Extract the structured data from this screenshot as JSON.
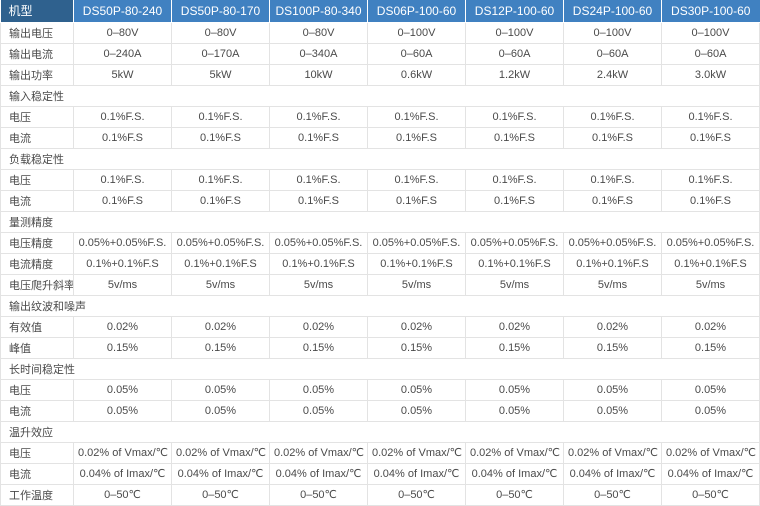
{
  "table": {
    "header": {
      "label": "机型",
      "models": [
        "DS50P-80-240",
        "DS50P-80-170",
        "DS100P-80-340",
        "DS06P-100-60",
        "DS12P-100-60",
        "DS24P-100-60",
        "DS30P-100-60"
      ]
    },
    "rows": [
      {
        "type": "data",
        "label": "输出电压",
        "values": [
          "0–80V",
          "0–80V",
          "0–80V",
          "0–100V",
          "0–100V",
          "0–100V",
          "0–100V"
        ]
      },
      {
        "type": "data",
        "label": "输出电流",
        "values": [
          "0–240A",
          "0–170A",
          "0–340A",
          "0–60A",
          "0–60A",
          "0–60A",
          "0–60A"
        ]
      },
      {
        "type": "data",
        "label": "输出功率",
        "values": [
          "5kW",
          "5kW",
          "10kW",
          "0.6kW",
          "1.2kW",
          "2.4kW",
          "3.0kW"
        ]
      },
      {
        "type": "section",
        "label": "输入稳定性"
      },
      {
        "type": "data",
        "label": "电压",
        "values": [
          "0.1%F.S.",
          "0.1%F.S.",
          "0.1%F.S.",
          "0.1%F.S.",
          "0.1%F.S.",
          "0.1%F.S.",
          "0.1%F.S."
        ]
      },
      {
        "type": "data",
        "label": "电流",
        "values": [
          "0.1%F.S",
          "0.1%F.S",
          "0.1%F.S",
          "0.1%F.S",
          "0.1%F.S",
          "0.1%F.S",
          "0.1%F.S"
        ]
      },
      {
        "type": "section",
        "label": "负载稳定性"
      },
      {
        "type": "data",
        "label": "电压",
        "values": [
          "0.1%F.S.",
          "0.1%F.S.",
          "0.1%F.S.",
          "0.1%F.S.",
          "0.1%F.S.",
          "0.1%F.S.",
          "0.1%F.S."
        ]
      },
      {
        "type": "data",
        "label": "电流",
        "values": [
          "0.1%F.S",
          "0.1%F.S",
          "0.1%F.S",
          "0.1%F.S",
          "0.1%F.S",
          "0.1%F.S",
          "0.1%F.S"
        ]
      },
      {
        "type": "section",
        "label": "量测精度"
      },
      {
        "type": "data",
        "label": "电压精度",
        "values": [
          "0.05%+0.05%F.S.",
          "0.05%+0.05%F.S.",
          "0.05%+0.05%F.S.",
          "0.05%+0.05%F.S.",
          "0.05%+0.05%F.S.",
          "0.05%+0.05%F.S.",
          "0.05%+0.05%F.S."
        ]
      },
      {
        "type": "data",
        "label": "电流精度",
        "values": [
          "0.1%+0.1%F.S",
          "0.1%+0.1%F.S",
          "0.1%+0.1%F.S",
          "0.1%+0.1%F.S",
          "0.1%+0.1%F.S",
          "0.1%+0.1%F.S",
          "0.1%+0.1%F.S"
        ]
      },
      {
        "type": "data",
        "label": "电压爬升斜率",
        "values": [
          "5v/ms",
          "5v/ms",
          "5v/ms",
          "5v/ms",
          "5v/ms",
          "5v/ms",
          "5v/ms"
        ]
      },
      {
        "type": "section",
        "label": "输出纹波和噪声"
      },
      {
        "type": "data",
        "label": "有效值",
        "values": [
          "0.02%",
          "0.02%",
          "0.02%",
          "0.02%",
          "0.02%",
          "0.02%",
          "0.02%"
        ]
      },
      {
        "type": "data",
        "label": "峰值",
        "values": [
          "0.15%",
          "0.15%",
          "0.15%",
          "0.15%",
          "0.15%",
          "0.15%",
          "0.15%"
        ]
      },
      {
        "type": "section",
        "label": "长时间稳定性"
      },
      {
        "type": "data",
        "label": "电压",
        "values": [
          "0.05%",
          "0.05%",
          "0.05%",
          "0.05%",
          "0.05%",
          "0.05%",
          "0.05%"
        ]
      },
      {
        "type": "data",
        "label": "电流",
        "values": [
          "0.05%",
          "0.05%",
          "0.05%",
          "0.05%",
          "0.05%",
          "0.05%",
          "0.05%"
        ]
      },
      {
        "type": "section",
        "label": "温升效应"
      },
      {
        "type": "data",
        "label": "电压",
        "values": [
          "0.02% of Vmax/℃",
          "0.02% of Vmax/℃",
          "0.02% of Vmax/℃",
          "0.02% of Vmax/℃",
          "0.02% of Vmax/℃",
          "0.02% of Vmax/℃",
          "0.02% of Vmax/℃"
        ]
      },
      {
        "type": "data",
        "label": "电流",
        "values": [
          "0.04% of Imax/℃",
          "0.04% of Imax/℃",
          "0.04% of Imax/℃",
          "0.04% of Imax/℃",
          "0.04% of Imax/℃",
          "0.04% of Imax/℃",
          "0.04% of Imax/℃"
        ]
      },
      {
        "type": "data",
        "label": "工作温度",
        "values": [
          "0–50℃",
          "0–50℃",
          "0–50℃",
          "0–50℃",
          "0–50℃",
          "0–50℃",
          "0–50℃"
        ]
      }
    ],
    "colors": {
      "header_label_bg": "#2f618e",
      "header_model_bg": "#4081c1",
      "border": "#e3e3e3",
      "text": "#4a4a4a"
    }
  }
}
